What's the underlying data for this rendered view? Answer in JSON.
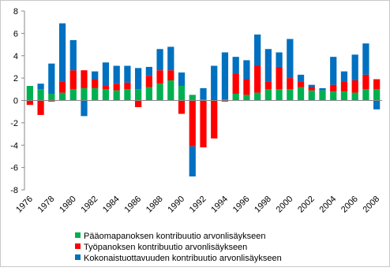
{
  "chart_data": {
    "type": "stacked-bar",
    "categories": [
      "1976",
      null,
      "1978",
      null,
      "1980",
      null,
      "1982",
      null,
      "1984",
      null,
      "1986",
      null,
      "1988",
      null,
      "1990",
      null,
      "1992",
      null,
      "1994",
      null,
      "1996",
      null,
      "1998",
      null,
      "2000",
      null,
      "2002",
      null,
      "2004",
      null,
      "2006",
      null,
      "2008"
    ],
    "series": [
      {
        "name": "Pääomapanoksen kontribuutio arvonlisäykseen",
        "color": "#00b050",
        "values": [
          1.3,
          1.0,
          0.6,
          0.7,
          1.0,
          1.1,
          1.1,
          1.0,
          0.9,
          1.0,
          1.0,
          1.2,
          1.5,
          1.8,
          1.3,
          0.5,
          0.1,
          0.0,
          0.1,
          0.6,
          0.5,
          0.7,
          1.0,
          1.0,
          1.0,
          1.2,
          0.9,
          0.9,
          0.8,
          0.8,
          0.7,
          1.0,
          1.0
        ]
      },
      {
        "name": "Työpanoksen kontribuutio arvonlisäykseen",
        "color": "#ff0000",
        "values": [
          -0.4,
          -1.3,
          -0.1,
          1.0,
          1.7,
          1.6,
          0.8,
          0.3,
          0.6,
          0.6,
          -0.6,
          1.0,
          1.2,
          0.9,
          -1.2,
          -4.1,
          -4.2,
          -3.4,
          -0.1,
          1.8,
          1.4,
          2.4,
          0.7,
          2.0,
          1.0,
          0.5,
          0.3,
          0.0,
          0.6,
          0.9,
          1.1,
          1.3,
          0.9
        ]
      },
      {
        "name": "Kokonaistuottavuuden kontribuutio arvonlisäykseen",
        "color": "#0070c0",
        "values": [
          0.0,
          0.5,
          2.7,
          5.2,
          2.7,
          -1.4,
          0.7,
          2.1,
          1.6,
          1.5,
          1.9,
          0.8,
          1.9,
          2.1,
          1.2,
          -2.7,
          1.0,
          3.1,
          4.2,
          1.5,
          1.7,
          2.8,
          2.9,
          1.3,
          3.5,
          0.6,
          0.2,
          0.2,
          2.5,
          0.9,
          2.3,
          2.8,
          -0.8
        ]
      }
    ],
    "ylim": [
      -8,
      8
    ],
    "yticks": [
      -8,
      -6,
      -4,
      -2,
      0,
      2,
      4,
      6,
      8
    ],
    "legend": "bottom"
  }
}
